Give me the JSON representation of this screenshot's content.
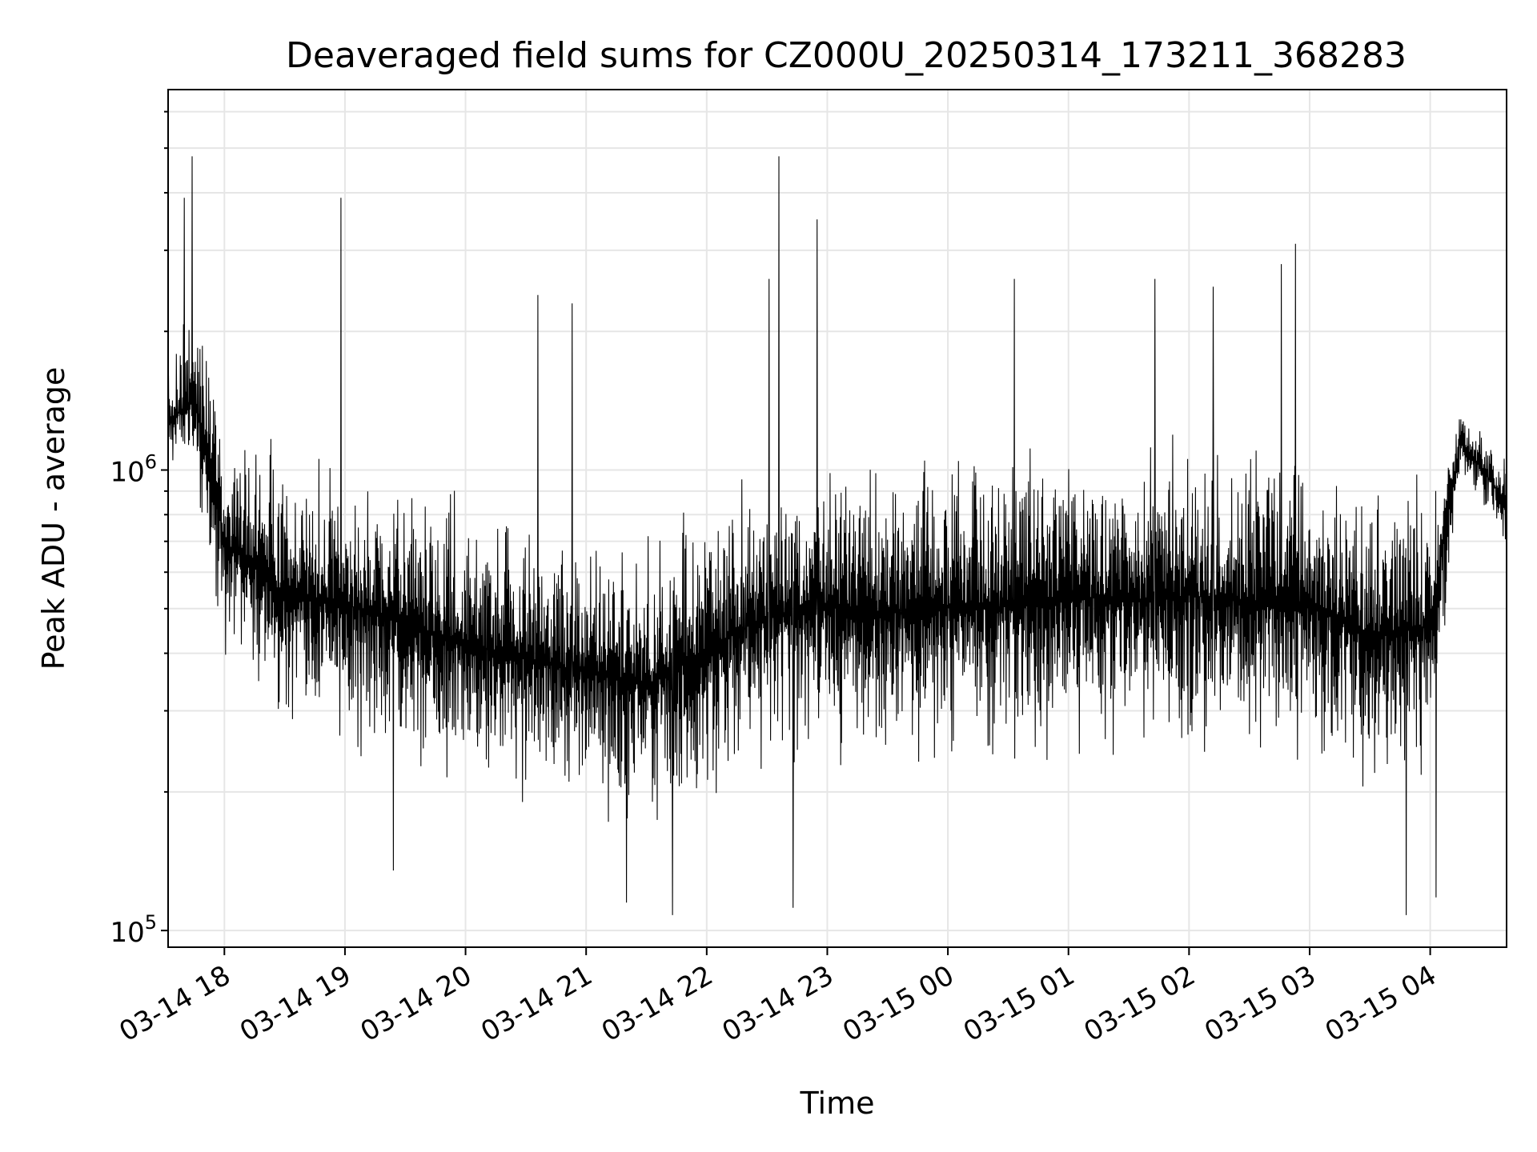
{
  "chart_data": {
    "type": "line",
    "title": "Deaveraged field sums for CZ000U_20250314_173211_368283",
    "xlabel": "Time",
    "ylabel": "Peak ADU - average",
    "y_scale": "log",
    "ylim": [
      92000,
      6700000
    ],
    "xlim": [
      "2025-03-14 17:32",
      "2025-03-15 04:38"
    ],
    "grid": true,
    "line_color": "#000000",
    "x_ticks": [
      {
        "label": "03-14 18",
        "time": "2025-03-14 18:00"
      },
      {
        "label": "03-14 19",
        "time": "2025-03-14 19:00"
      },
      {
        "label": "03-14 20",
        "time": "2025-03-14 20:00"
      },
      {
        "label": "03-14 21",
        "time": "2025-03-14 21:00"
      },
      {
        "label": "03-14 22",
        "time": "2025-03-14 22:00"
      },
      {
        "label": "03-14 23",
        "time": "2025-03-14 23:00"
      },
      {
        "label": "03-15 00",
        "time": "2025-03-15 00:00"
      },
      {
        "label": "03-15 01",
        "time": "2025-03-15 01:00"
      },
      {
        "label": "03-15 02",
        "time": "2025-03-15 02:00"
      },
      {
        "label": "03-15 03",
        "time": "2025-03-15 03:00"
      },
      {
        "label": "03-15 04",
        "time": "2025-03-15 04:00"
      }
    ],
    "y_ticks": [
      {
        "base": "10",
        "exp": "5",
        "value": 100000
      },
      {
        "base": "10",
        "exp": "6",
        "value": 1000000
      }
    ],
    "envelope": {
      "x": [
        "2025-03-14 17:32",
        "2025-03-14 17:45",
        "2025-03-14 18:00",
        "2025-03-14 18:30",
        "2025-03-14 19:00",
        "2025-03-14 19:30",
        "2025-03-14 20:00",
        "2025-03-14 20:30",
        "2025-03-14 21:00",
        "2025-03-14 21:30",
        "2025-03-14 22:00",
        "2025-03-14 22:30",
        "2025-03-14 23:00",
        "2025-03-14 23:30",
        "2025-03-15 00:00",
        "2025-03-15 00:30",
        "2025-03-15 01:00",
        "2025-03-15 01:30",
        "2025-03-15 02:00",
        "2025-03-15 02:30",
        "2025-03-15 03:00",
        "2025-03-15 03:30",
        "2025-03-15 04:00",
        "2025-03-15 04:15",
        "2025-03-15 04:38"
      ],
      "low": [
        800000,
        700000,
        350000,
        220000,
        200000,
        180000,
        160000,
        150000,
        140000,
        130000,
        150000,
        180000,
        180000,
        170000,
        180000,
        170000,
        190000,
        180000,
        190000,
        180000,
        180000,
        150000,
        160000,
        900000,
        600000
      ],
      "high": [
        2000000,
        3000000,
        1400000,
        1300000,
        1300000,
        1200000,
        1100000,
        1000000,
        950000,
        900000,
        1100000,
        1300000,
        1400000,
        1400000,
        1400000,
        1500000,
        1500000,
        1500000,
        1500000,
        1500000,
        1400000,
        1300000,
        1300000,
        1500000,
        1200000
      ]
    },
    "peaks": [
      {
        "x": "2025-03-14 17:44",
        "y": 4800000
      },
      {
        "x": "2025-03-14 17:40",
        "y": 3900000
      },
      {
        "x": "2025-03-14 18:58",
        "y": 3900000
      },
      {
        "x": "2025-03-14 20:36",
        "y": 2400000
      },
      {
        "x": "2025-03-14 20:53",
        "y": 2300000
      },
      {
        "x": "2025-03-14 22:36",
        "y": 4800000
      },
      {
        "x": "2025-03-14 22:31",
        "y": 2600000
      },
      {
        "x": "2025-03-14 22:55",
        "y": 3500000
      },
      {
        "x": "2025-03-15 00:33",
        "y": 2600000
      },
      {
        "x": "2025-03-15 01:43",
        "y": 2600000
      },
      {
        "x": "2025-03-15 02:12",
        "y": 2500000
      },
      {
        "x": "2025-03-15 02:53",
        "y": 3100000
      },
      {
        "x": "2025-03-15 02:46",
        "y": 2800000
      }
    ],
    "troughs": [
      {
        "x": "2025-03-14 19:24",
        "y": 135000
      },
      {
        "x": "2025-03-14 21:20",
        "y": 115000
      },
      {
        "x": "2025-03-14 21:43",
        "y": 108000
      },
      {
        "x": "2025-03-14 22:43",
        "y": 112000
      },
      {
        "x": "2025-03-15 03:48",
        "y": 108000
      },
      {
        "x": "2025-03-15 04:03",
        "y": 118000
      }
    ]
  }
}
